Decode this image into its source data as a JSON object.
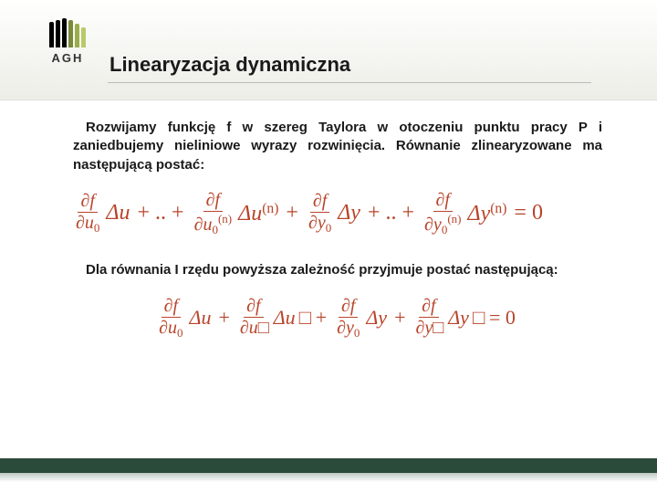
{
  "logo": {
    "text": "AGH"
  },
  "title": "Linearyzacja dynamiczna",
  "para1": "Rozwijamy funkcję f w szereg Taylora w otoczeniu punktu pracy P i zaniedbujemy nieliniowe wyrazy rozwinięcia. Równanie zlinearyzowane ma następującą postać:",
  "eq1": {
    "t1_num": "∂f",
    "t1_den_a": "∂u",
    "t1_den_sub": "0",
    "t1_var": "Δu",
    "dots1": "+ .. +",
    "t2_num": "∂f",
    "t2_den_a": "∂u",
    "t2_den_sub": "0",
    "t2_den_sup": "(n)",
    "t2_var": "Δu",
    "t2_var_sup": "(n)",
    "plus2": "+",
    "t3_num": "∂f",
    "t3_den_a": "∂y",
    "t3_den_sub": "0",
    "t3_var": "Δy",
    "dots2": "+ .. +",
    "t4_num": "∂f",
    "t4_den_a": "∂y",
    "t4_den_sub": "0",
    "t4_den_sup": "(n)",
    "t4_var": "Δy",
    "t4_var_sup": "(n)",
    "eq0": "= 0"
  },
  "para2": "Dla równania I rzędu powyższa zależność przyjmuje postać następującą:",
  "eq2": {
    "t1_num": "∂f",
    "t1_den": "∂u",
    "t1_sub": "0",
    "t1_var": "Δu",
    "plus1": "+",
    "t2_num": "∂f",
    "t2_den": "∂u",
    "t2_extra": "",
    "t2_var": "Δu",
    "plus2": "+",
    "t3_num": "∂f",
    "t3_den": "∂y",
    "t3_sub": "0",
    "t3_var": "Δy",
    "plus3": "+",
    "t4_num": "∂f",
    "t4_den": "∂y",
    "t4_extra": "",
    "t4_var": "Δy",
    "eq0": "= 0"
  },
  "colors": {
    "equation": "#b8442a",
    "footer": "#2a4a3a"
  }
}
